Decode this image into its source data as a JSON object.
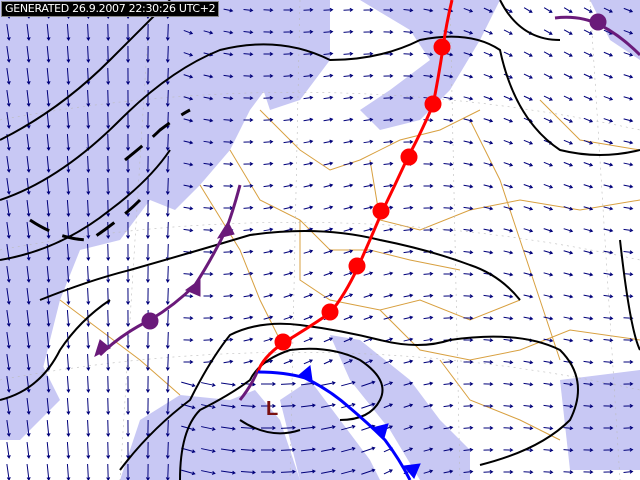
{
  "header": {
    "generated_label": "GENERATED 26.9.2007 22:30:26 UTC+2"
  },
  "map": {
    "pressure_center_label": "L",
    "colors": {
      "sea": "#c8c8f4",
      "land": "#ffffff",
      "borders": "#d8a040",
      "isobar": "#000000",
      "wind_arrow": "#00007a",
      "warm_front": "#ff0000",
      "cold_front": "#0000ff",
      "occluded_front": "#6a1a7a",
      "low_label": "#7a1010"
    },
    "fronts": [
      "warm-front",
      "cold-front",
      "occluded-front"
    ]
  }
}
